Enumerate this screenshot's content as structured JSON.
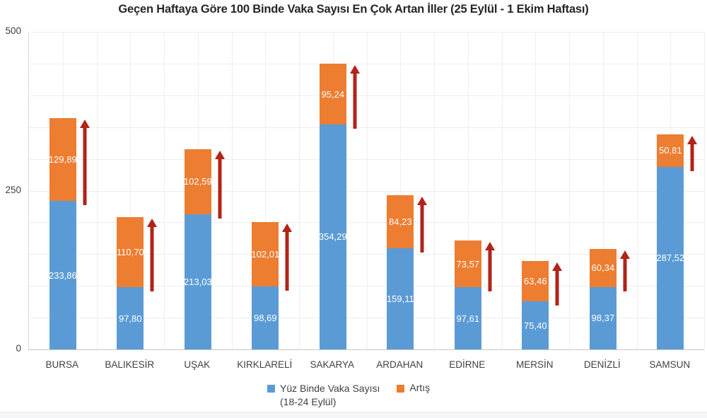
{
  "title": "Geçen Haftaya Göre 100 Binde Vaka Sayısı En Çok Artan İller (25 Eylül - 1 Ekim Haftası)",
  "legend": {
    "series1_line1": "Yüz Binde Vaka Sayısı",
    "series1_line2": "(18-24 Eylül)",
    "series2": "Artış"
  },
  "colors": {
    "cases_blue": "#5B9BD5",
    "increase_orange": "#ED7D31",
    "arrow_red": "#B22318",
    "axis_text": "#404040",
    "title_text": "#262626",
    "bar_label_text": "#FFFFFF"
  },
  "y_axis": {
    "ticks": [
      "500",
      "250",
      "0"
    ],
    "tick_values": [
      500,
      250,
      0
    ],
    "min": 0,
    "max": 500,
    "minor_gridline_step": 50
  },
  "decimal_separator": ",",
  "chart_data": {
    "type": "bar",
    "stacked": true,
    "grid": true,
    "legend_position": "bottom",
    "ylim": [
      0,
      500
    ],
    "categories": [
      "BURSA",
      "BALIKESİR",
      "UŞAK",
      "KIRKLARELİ",
      "SAKARYA",
      "ARDAHAN",
      "EDİRNE",
      "MERSİN",
      "DENİZLİ",
      "SAMSUN"
    ],
    "series": [
      {
        "name": "Yüz Binde Vaka Sayısı (18-24 Eylül)",
        "role": "cases",
        "values": [
          233.86,
          97.8,
          213.03,
          98.69,
          354.29,
          159.11,
          97.61,
          75.4,
          98.37,
          287.52
        ]
      },
      {
        "name": "Artış",
        "role": "increase",
        "values": [
          129.89,
          110.7,
          102.59,
          102.01,
          95.24,
          84.23,
          73.57,
          63.46,
          60.34,
          50.81
        ]
      }
    ],
    "annotations": "dark-red upward arrow beside the increase segment of every bar"
  }
}
